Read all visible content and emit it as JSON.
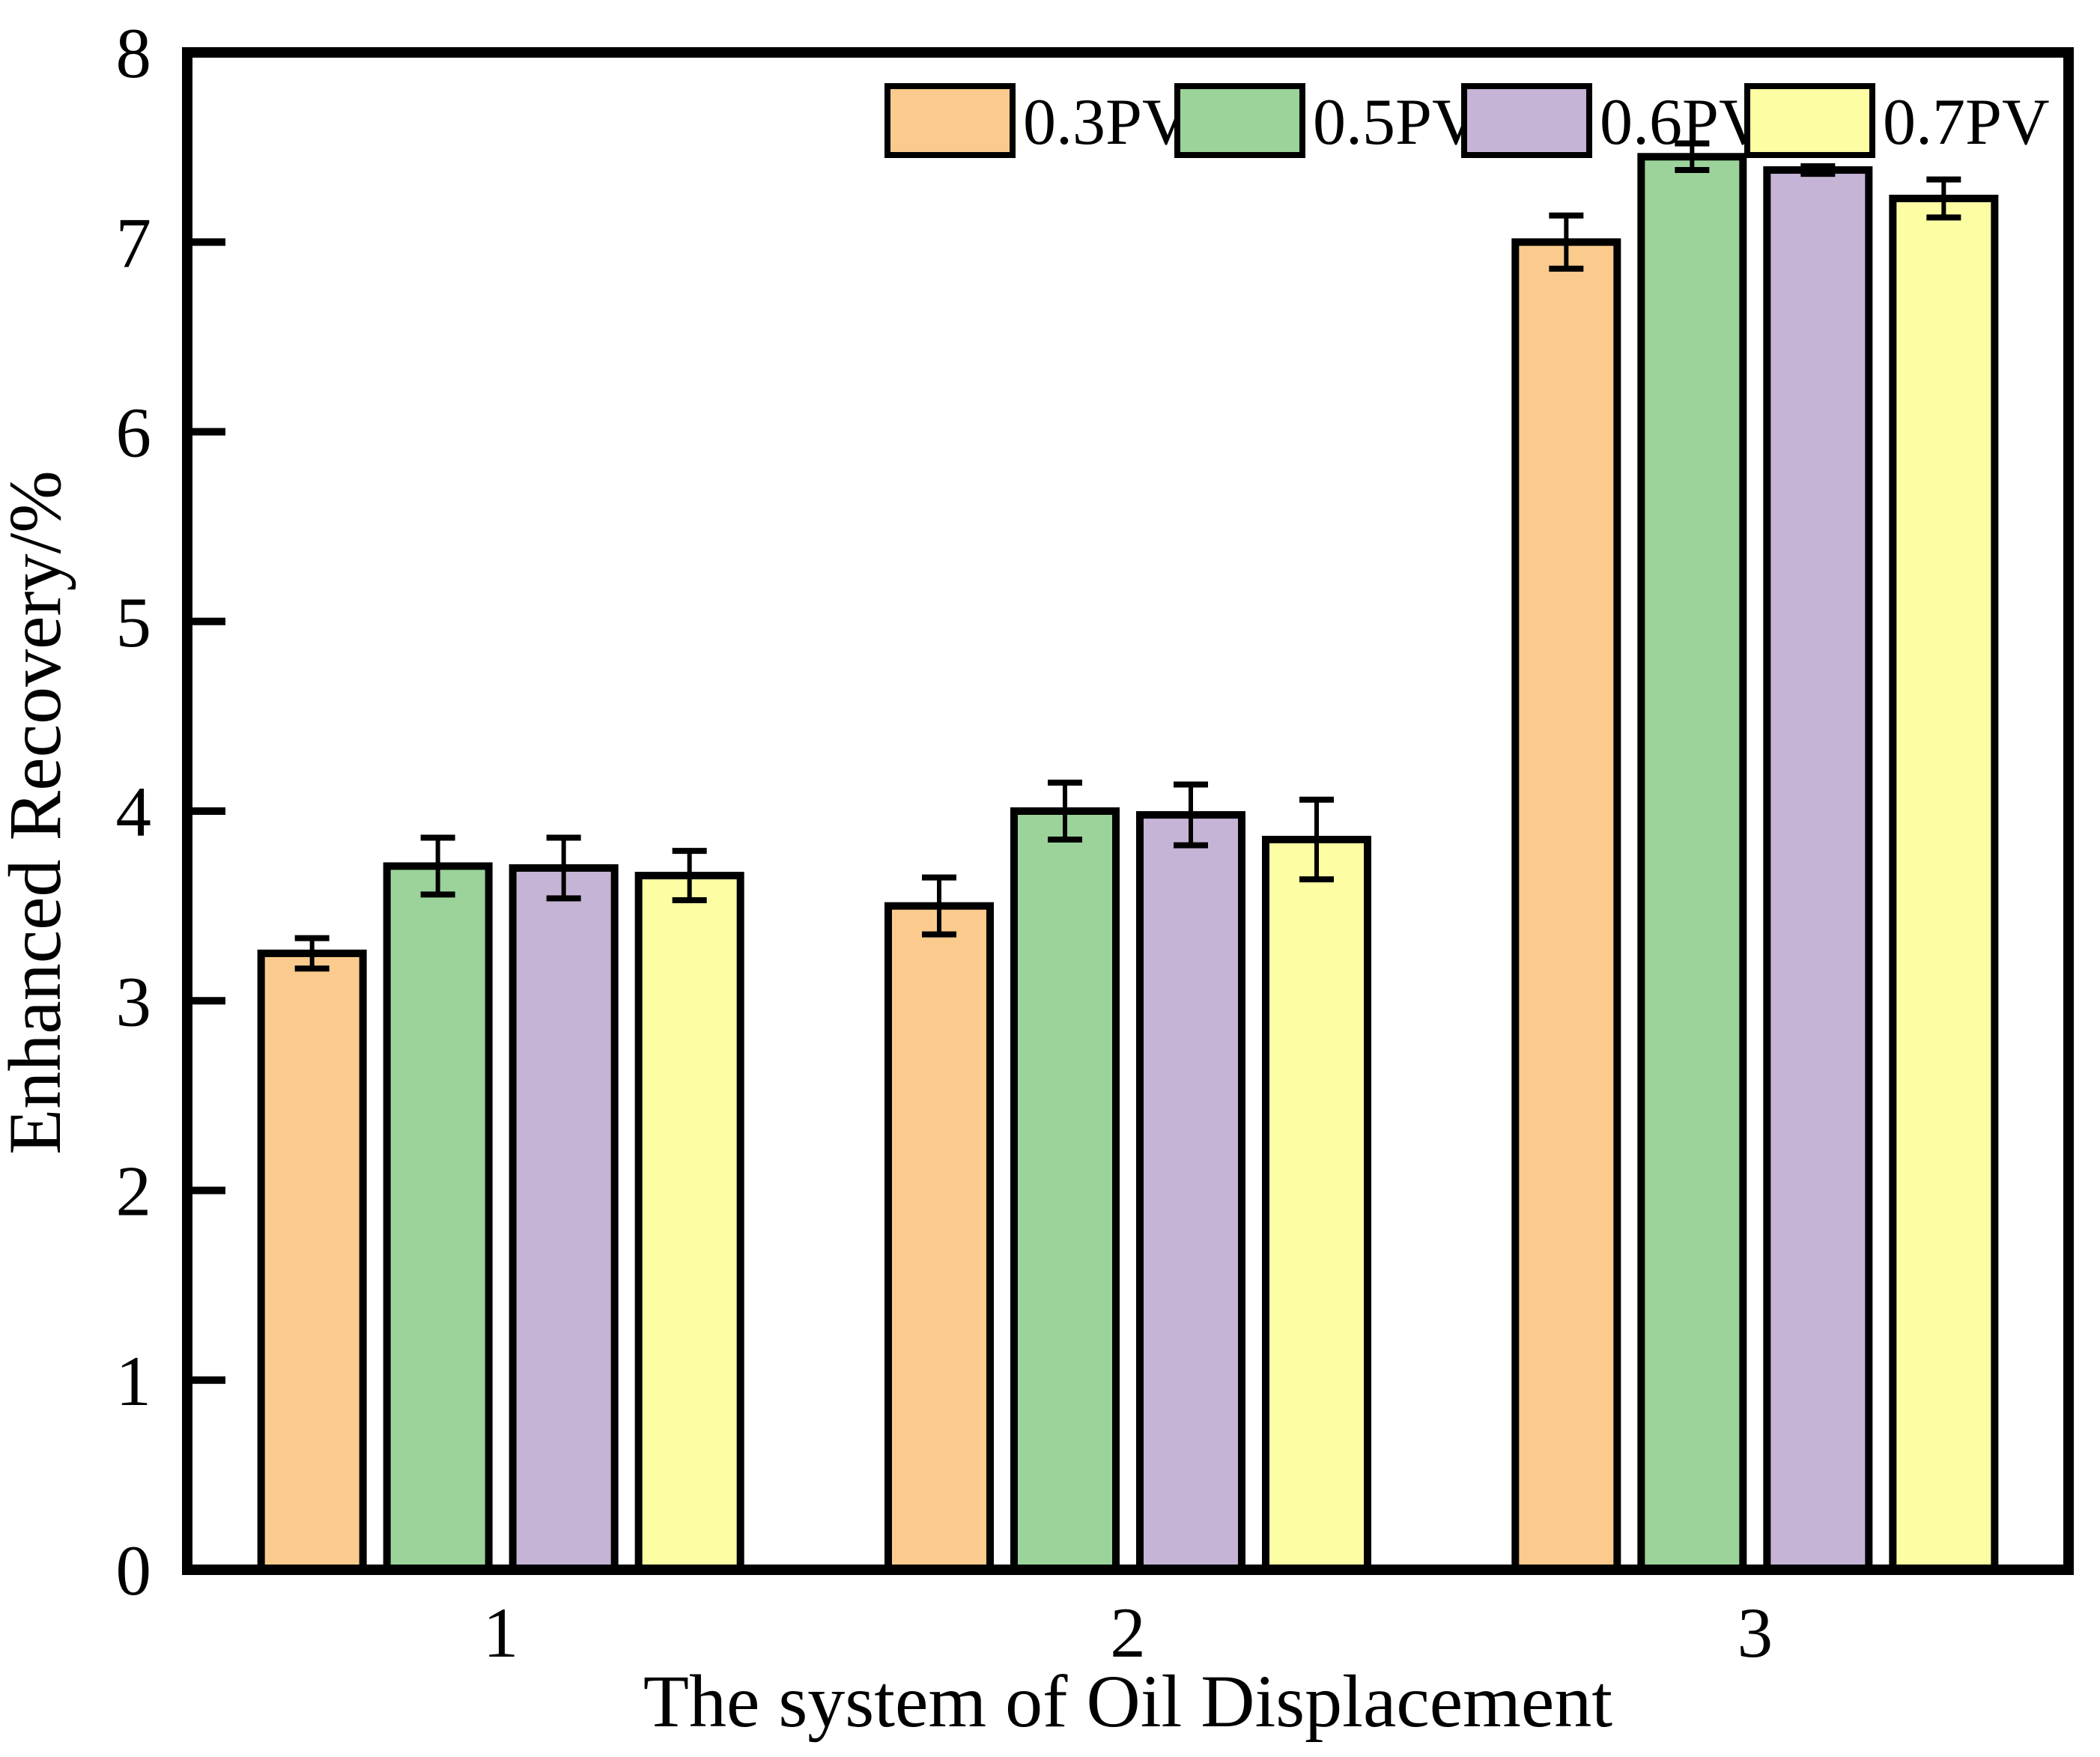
{
  "chart_data": {
    "type": "bar",
    "xlabel": "The system of Oil Displacement",
    "ylabel": "Enhanced Recovery/%",
    "categories": [
      "1",
      "2",
      "3"
    ],
    "series": [
      {
        "name": "0.3PV",
        "color": "#fbcb8d",
        "values": [
          3.25,
          3.5,
          7.0
        ],
        "errors": [
          0.08,
          0.15,
          0.14
        ]
      },
      {
        "name": "0.5PV",
        "color": "#9bd39b",
        "values": [
          3.71,
          4.0,
          7.45
        ],
        "errors": [
          0.15,
          0.15,
          0.07
        ]
      },
      {
        "name": "0.6PV",
        "color": "#c5b4d6",
        "values": [
          3.7,
          3.98,
          7.38
        ],
        "errors": [
          0.16,
          0.16,
          0.02
        ]
      },
      {
        "name": "0.7PV",
        "color": "#fdfda4",
        "values": [
          3.66,
          3.85,
          7.23
        ],
        "errors": [
          0.13,
          0.21,
          0.1
        ]
      }
    ],
    "ylim": [
      0,
      8
    ],
    "yticks": [
      0,
      1,
      2,
      3,
      4,
      5,
      6,
      7,
      8
    ],
    "grid": false,
    "error_bars": true,
    "legend_position": "top-inside",
    "colors": {
      "axis": "#000000",
      "background": "#ffffff"
    }
  }
}
